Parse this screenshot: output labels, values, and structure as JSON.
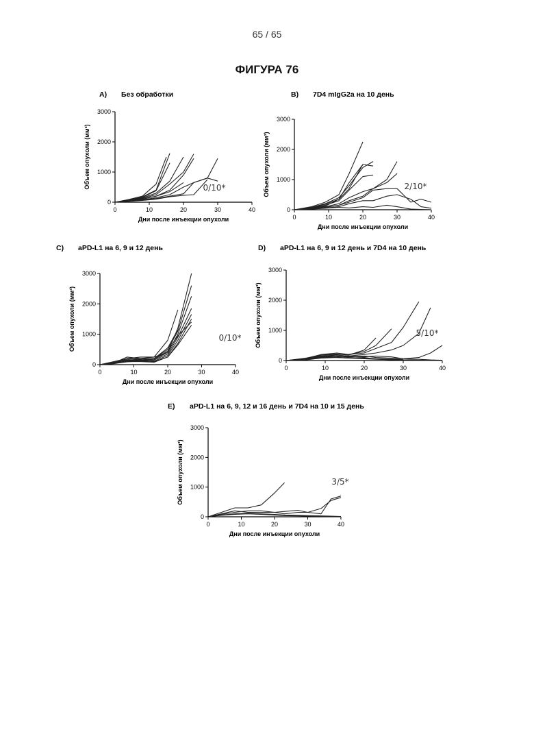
{
  "page": {
    "number": "65 / 65",
    "figure_title": "ФИГУРА 76"
  },
  "chart_data": [
    {
      "id": "A",
      "type": "line",
      "panel_label": "A)",
      "title": "Без обработки",
      "xlabel": "Дни после инъекции опухоли",
      "ylabel": "Объем опухоли (мм³)",
      "xlim": [
        0,
        40
      ],
      "ylim": [
        0,
        3000
      ],
      "xticks": [
        0,
        10,
        20,
        30,
        40
      ],
      "yticks": [
        0,
        1000,
        2000,
        3000
      ],
      "annotation": "0/10*",
      "series": [
        {
          "x": [
            0,
            4,
            8,
            12,
            16
          ],
          "y": [
            0,
            80,
            180,
            400,
            1620
          ]
        },
        {
          "x": [
            0,
            4,
            8,
            12,
            16
          ],
          "y": [
            0,
            70,
            160,
            380,
            1300
          ]
        },
        {
          "x": [
            0,
            4,
            8,
            12,
            15
          ],
          "y": [
            0,
            90,
            200,
            600,
            1500
          ]
        },
        {
          "x": [
            0,
            4,
            8,
            12,
            16,
            20
          ],
          "y": [
            0,
            60,
            140,
            300,
            700,
            1500
          ]
        },
        {
          "x": [
            0,
            4,
            8,
            12,
            16,
            20,
            23
          ],
          "y": [
            0,
            50,
            120,
            250,
            600,
            1000,
            1600
          ]
        },
        {
          "x": [
            0,
            4,
            8,
            12,
            16,
            20,
            23
          ],
          "y": [
            0,
            40,
            100,
            200,
            400,
            900,
            1450
          ]
        },
        {
          "x": [
            0,
            4,
            8,
            12,
            16,
            20,
            23,
            27,
            30
          ],
          "y": [
            0,
            40,
            80,
            150,
            250,
            500,
            650,
            800,
            1450
          ]
        },
        {
          "x": [
            0,
            4,
            8,
            12,
            16,
            20,
            23,
            27,
            30
          ],
          "y": [
            0,
            30,
            70,
            120,
            200,
            280,
            650,
            800,
            700
          ]
        },
        {
          "x": [
            0,
            4,
            8,
            12,
            16,
            20,
            23,
            27
          ],
          "y": [
            0,
            30,
            60,
            100,
            180,
            230,
            250,
            750
          ]
        },
        {
          "x": [
            0,
            4,
            8,
            12,
            16,
            20
          ],
          "y": [
            0,
            50,
            100,
            200,
            350,
            650
          ]
        }
      ]
    },
    {
      "id": "B",
      "type": "line",
      "panel_label": "B)",
      "title": "7D4 mIgG2a на 10 день",
      "xlabel": "Дни после инъекции опухоли",
      "ylabel": "Объем опухоли (мм³)",
      "xlim": [
        0,
        40
      ],
      "ylim": [
        0,
        3000
      ],
      "xticks": [
        0,
        10,
        20,
        30,
        40
      ],
      "yticks": [
        0,
        1000,
        2000,
        3000
      ],
      "annotation": "2/10*",
      "series": [
        {
          "x": [
            0,
            5,
            9,
            13,
            16,
            20
          ],
          "y": [
            0,
            100,
            250,
            500,
            1200,
            2250
          ]
        },
        {
          "x": [
            0,
            5,
            9,
            13,
            16,
            20,
            23
          ],
          "y": [
            0,
            80,
            200,
            400,
            800,
            1400,
            1600
          ]
        },
        {
          "x": [
            0,
            5,
            9,
            13,
            16,
            20,
            23
          ],
          "y": [
            0,
            70,
            180,
            350,
            700,
            1500,
            1450
          ]
        },
        {
          "x": [
            0,
            5,
            9,
            13,
            16,
            20,
            23
          ],
          "y": [
            0,
            60,
            150,
            300,
            650,
            1100,
            1150
          ]
        },
        {
          "x": [
            0,
            5,
            9,
            13,
            16,
            20
          ],
          "y": [
            0,
            50,
            120,
            350,
            900,
            1500
          ]
        },
        {
          "x": [
            0,
            5,
            9,
            13,
            16,
            20,
            23,
            27,
            30
          ],
          "y": [
            0,
            40,
            100,
            200,
            400,
            600,
            700,
            1000,
            1600
          ]
        },
        {
          "x": [
            0,
            5,
            9,
            13,
            16,
            20,
            23,
            27,
            30
          ],
          "y": [
            0,
            30,
            80,
            150,
            300,
            450,
            700,
            900,
            1200
          ]
        },
        {
          "x": [
            0,
            5,
            9,
            13,
            16,
            20,
            23,
            27,
            30,
            34,
            37,
            40
          ],
          "y": [
            0,
            30,
            80,
            150,
            250,
            400,
            650,
            700,
            700,
            250,
            350,
            250
          ]
        },
        {
          "x": [
            0,
            5,
            9,
            13,
            16,
            20,
            23,
            27,
            30,
            34,
            37,
            40
          ],
          "y": [
            0,
            20,
            60,
            100,
            200,
            300,
            300,
            450,
            500,
            350,
            100,
            50
          ]
        },
        {
          "x": [
            0,
            5,
            9,
            13,
            16,
            20,
            23,
            27,
            30,
            34,
            40
          ],
          "y": [
            0,
            20,
            50,
            80,
            60,
            100,
            80,
            150,
            100,
            20,
            0
          ]
        }
      ]
    },
    {
      "id": "C",
      "type": "line",
      "panel_label": "C)",
      "title": "aPD-L1 на 6, 9 и 12 день",
      "xlabel": "Дни после инъекции опухоли",
      "ylabel": "Объем опухоли (мм³)",
      "xlim": [
        0,
        40
      ],
      "ylim": [
        0,
        3000
      ],
      "xticks": [
        0,
        10,
        20,
        30,
        40
      ],
      "yticks": [
        0,
        1000,
        2000,
        3000
      ],
      "annotation": "0/10*",
      "series": [
        {
          "x": [
            0,
            4,
            8,
            12,
            16,
            20,
            23,
            27
          ],
          "y": [
            0,
            100,
            200,
            250,
            250,
            400,
            1200,
            3000
          ]
        },
        {
          "x": [
            0,
            4,
            8,
            12,
            16,
            20,
            23,
            27
          ],
          "y": [
            0,
            80,
            150,
            150,
            200,
            500,
            1100,
            2600
          ]
        },
        {
          "x": [
            0,
            4,
            8,
            12,
            16,
            20,
            23,
            27
          ],
          "y": [
            0,
            70,
            180,
            200,
            180,
            400,
            1000,
            2250
          ]
        },
        {
          "x": [
            0,
            4,
            8,
            12,
            16,
            20,
            23,
            27
          ],
          "y": [
            0,
            60,
            140,
            160,
            150,
            350,
            900,
            1850
          ]
        },
        {
          "x": [
            0,
            4,
            8,
            12,
            16,
            20,
            23,
            27
          ],
          "y": [
            0,
            50,
            130,
            140,
            120,
            300,
            800,
            1650
          ]
        },
        {
          "x": [
            0,
            4,
            8,
            12,
            16,
            20,
            23,
            27
          ],
          "y": [
            0,
            40,
            120,
            120,
            100,
            250,
            700,
            1500
          ]
        },
        {
          "x": [
            0,
            4,
            8,
            12,
            16,
            20,
            23,
            27
          ],
          "y": [
            0,
            30,
            100,
            100,
            80,
            250,
            650,
            1300
          ]
        },
        {
          "x": [
            0,
            4,
            8,
            12,
            16,
            20,
            23
          ],
          "y": [
            0,
            50,
            250,
            200,
            250,
            800,
            1800
          ]
        },
        {
          "x": [
            0,
            4,
            8,
            12,
            16,
            20,
            23,
            27
          ],
          "y": [
            0,
            40,
            90,
            120,
            180,
            450,
            950,
            1400
          ]
        },
        {
          "x": [
            0,
            4,
            8,
            12,
            16,
            20,
            23
          ],
          "y": [
            0,
            60,
            150,
            180,
            200,
            550,
            1150
          ]
        }
      ]
    },
    {
      "id": "D",
      "type": "line",
      "panel_label": "D)",
      "title": "aPD-L1 на 6, 9 и 12 день и 7D4 на 10 день",
      "xlabel": "Дни после инъекции опухоли",
      "ylabel": "Объем опухоли (мм³)",
      "xlim": [
        0,
        40
      ],
      "ylim": [
        0,
        3000
      ],
      "xticks": [
        0,
        10,
        20,
        30,
        40
      ],
      "yticks": [
        0,
        1000,
        2000,
        3000
      ],
      "annotation": "5/10*",
      "series": [
        {
          "x": [
            0,
            5,
            9,
            13,
            16,
            20,
            23,
            27,
            30,
            34
          ],
          "y": [
            0,
            80,
            180,
            200,
            200,
            250,
            400,
            600,
            1100,
            1950
          ]
        },
        {
          "x": [
            0,
            5,
            9,
            13,
            16,
            20,
            23,
            27,
            30,
            34,
            37
          ],
          "y": [
            0,
            60,
            150,
            180,
            150,
            200,
            250,
            350,
            500,
            900,
            1750
          ]
        },
        {
          "x": [
            0,
            5,
            9,
            13,
            16,
            20,
            23,
            27
          ],
          "y": [
            0,
            70,
            200,
            250,
            200,
            300,
            500,
            1050
          ]
        },
        {
          "x": [
            0,
            5,
            9,
            13,
            16,
            20,
            23
          ],
          "y": [
            0,
            50,
            180,
            220,
            180,
            350,
            750
          ]
        },
        {
          "x": [
            0,
            5,
            9,
            13,
            16,
            20,
            23,
            27,
            30,
            34,
            37,
            40
          ],
          "y": [
            0,
            40,
            150,
            150,
            120,
            150,
            100,
            80,
            60,
            100,
            250,
            500
          ]
        },
        {
          "x": [
            0,
            5,
            9,
            13,
            16,
            20,
            23,
            27,
            30
          ],
          "y": [
            0,
            30,
            120,
            150,
            100,
            80,
            60,
            50,
            30
          ]
        },
        {
          "x": [
            0,
            5,
            9,
            13,
            16,
            20,
            23,
            27,
            30,
            34,
            37,
            40
          ],
          "y": [
            0,
            40,
            130,
            100,
            80,
            80,
            50,
            30,
            20,
            10,
            5,
            0
          ]
        },
        {
          "x": [
            0,
            5,
            9,
            13,
            16,
            20,
            23,
            27,
            30,
            34,
            37,
            40
          ],
          "y": [
            0,
            30,
            100,
            120,
            150,
            100,
            50,
            20,
            10,
            0,
            0,
            0
          ]
        },
        {
          "x": [
            0,
            5,
            9,
            13,
            16,
            20,
            23,
            27,
            30,
            34,
            37,
            40
          ],
          "y": [
            0,
            20,
            80,
            100,
            80,
            60,
            40,
            30,
            20,
            10,
            0,
            0
          ]
        },
        {
          "x": [
            0,
            5,
            9,
            13,
            16,
            20,
            23,
            27,
            30,
            34,
            37,
            40
          ],
          "y": [
            0,
            25,
            90,
            110,
            130,
            120,
            150,
            120,
            60,
            40,
            20,
            10
          ]
        }
      ]
    },
    {
      "id": "E",
      "type": "line",
      "panel_label": "E)",
      "title": "aPD-L1 на 6, 9, 12 и 16 день и 7D4 на 10 и 15 день",
      "xlabel": "Дни после инъекции опухоли",
      "ylabel": "Объем опухоли (мм³)",
      "xlim": [
        0,
        40
      ],
      "ylim": [
        0,
        3000
      ],
      "xticks": [
        0,
        10,
        20,
        30,
        40
      ],
      "yticks": [
        0,
        1000,
        2000,
        3000
      ],
      "annotation": "3/5*",
      "series": [
        {
          "x": [
            0,
            4,
            8,
            12,
            16,
            20,
            23
          ],
          "y": [
            0,
            150,
            300,
            300,
            400,
            800,
            1150
          ]
        },
        {
          "x": [
            0,
            4,
            8,
            12,
            16,
            20,
            23,
            27,
            30,
            34,
            37,
            40
          ],
          "y": [
            0,
            100,
            200,
            150,
            150,
            150,
            100,
            150,
            150,
            100,
            600,
            700
          ]
        },
        {
          "x": [
            0,
            4,
            8,
            12,
            16,
            20,
            23,
            27,
            30,
            34,
            37,
            40
          ],
          "y": [
            0,
            80,
            150,
            200,
            200,
            150,
            180,
            220,
            150,
            280,
            550,
            650
          ]
        },
        {
          "x": [
            0,
            4,
            8,
            12,
            16,
            20,
            23,
            27,
            30,
            34,
            37,
            40
          ],
          "y": [
            0,
            60,
            100,
            120,
            100,
            80,
            60,
            50,
            40,
            30,
            20,
            10
          ]
        },
        {
          "x": [
            0,
            4,
            8,
            12,
            16,
            20,
            23,
            27,
            30,
            34,
            37,
            40
          ],
          "y": [
            0,
            50,
            80,
            100,
            80,
            60,
            40,
            30,
            20,
            10,
            0,
            0
          ]
        }
      ]
    }
  ]
}
